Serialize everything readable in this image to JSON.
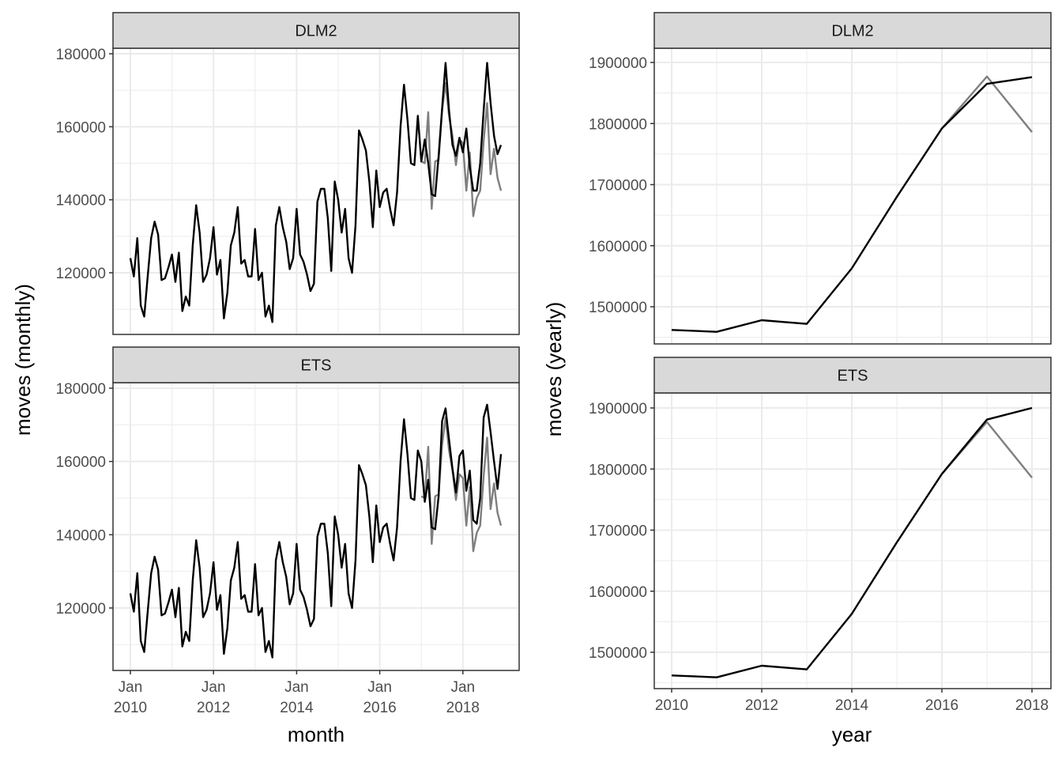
{
  "figure": {
    "left_ylabel": "moves (monthly)",
    "left_xlabel": "month",
    "right_ylabel": "moves (yearly)",
    "right_xlabel": "year",
    "colors": {
      "fitted": "#000000",
      "observed": "#7f7f7f",
      "strip_bg": "#d9d9d9",
      "grid": "#ebebeb",
      "panel_border": "#333333"
    }
  },
  "chart_data": [
    {
      "type": "line",
      "facet": "DLM2",
      "x": "monthly, Jan 2010 to Dec 2018",
      "xticks": [
        "Jan\n2010",
        "Jan\n2012",
        "Jan\n2014",
        "Jan\n2016",
        "Jan\n2018"
      ],
      "yticks": [
        "120000",
        "140000",
        "160000",
        "180000"
      ],
      "ylim": [
        103000,
        190000
      ],
      "series": [
        {
          "role": "fitted",
          "values": [
            124000,
            119000,
            129500,
            111000,
            108000,
            119000,
            129500,
            134000,
            130500,
            118000,
            118500,
            121500,
            125000,
            117500,
            125500,
            109500,
            113500,
            111000,
            127500,
            138500,
            131000,
            117500,
            119500,
            124000,
            132500,
            119500,
            123500,
            107500,
            114500,
            127500,
            131000,
            138000,
            122500,
            123500,
            119000,
            119000,
            132000,
            118000,
            120000,
            108000,
            111000,
            106500,
            133000,
            138000,
            132500,
            128500,
            121000,
            124000,
            137500,
            125000,
            123000,
            119500,
            115000,
            117000,
            139500,
            143000,
            143000,
            135000,
            120500,
            145000,
            140000,
            131000,
            137500,
            124000,
            120000,
            133000,
            159000,
            156500,
            153500,
            145000,
            132500,
            148000,
            138000,
            142000,
            143000,
            137500,
            133000,
            142000,
            160000,
            171500,
            162000,
            150000,
            149500,
            163000,
            150500,
            156500,
            150000,
            141500,
            141000,
            152000,
            165000,
            177500,
            164500,
            155000,
            152000,
            157000,
            153000,
            159500,
            149000,
            142500,
            142500,
            150000,
            164500,
            177500,
            166500,
            157500,
            152500,
            155000
          ],
          "ticks_ref": "fitted"
        },
        {
          "role": "observed",
          "values": [
            null,
            null,
            null,
            null,
            null,
            null,
            null,
            null,
            null,
            null,
            null,
            null,
            null,
            null,
            null,
            null,
            null,
            null,
            null,
            null,
            null,
            null,
            null,
            null,
            null,
            null,
            null,
            null,
            null,
            null,
            null,
            null,
            null,
            null,
            null,
            null,
            null,
            null,
            null,
            null,
            null,
            null,
            null,
            null,
            null,
            null,
            null,
            null,
            null,
            null,
            null,
            null,
            null,
            null,
            null,
            null,
            null,
            null,
            null,
            null,
            null,
            null,
            null,
            null,
            null,
            null,
            null,
            null,
            null,
            null,
            null,
            null,
            null,
            null,
            null,
            null,
            null,
            null,
            null,
            null,
            null,
            null,
            null,
            null,
            150500,
            150000,
            164000,
            137500,
            150500,
            151000,
            164500,
            172000,
            163000,
            157500,
            149500,
            156500,
            155500,
            142500,
            153000,
            135500,
            140500,
            142500,
            156000,
            166500,
            147000,
            154000,
            146000,
            142500
          ]
        }
      ]
    },
    {
      "type": "line",
      "facet": "ETS",
      "x": "monthly, Jan 2010 to Dec 2018",
      "xticks": [
        "Jan\n2010",
        "Jan\n2012",
        "Jan\n2014",
        "Jan\n2016",
        "Jan\n2018"
      ],
      "yticks": [
        "120000",
        "140000",
        "160000",
        "180000"
      ],
      "ylim": [
        103000,
        190000
      ],
      "series": [
        {
          "role": "fitted",
          "values": [
            124000,
            119000,
            129500,
            111000,
            108000,
            119000,
            129500,
            134000,
            130500,
            118000,
            118500,
            121500,
            125000,
            117500,
            125500,
            109500,
            113500,
            111000,
            127500,
            138500,
            131000,
            117500,
            119500,
            124000,
            132500,
            119500,
            123500,
            107500,
            114500,
            127500,
            131000,
            138000,
            122500,
            123500,
            119000,
            119000,
            132000,
            118000,
            120000,
            108000,
            111000,
            106500,
            133000,
            138000,
            132500,
            128500,
            121000,
            124000,
            137500,
            125000,
            123000,
            119500,
            115000,
            117000,
            139500,
            143000,
            143000,
            135000,
            120500,
            145000,
            140000,
            131000,
            137500,
            124000,
            120000,
            133000,
            159000,
            156500,
            153500,
            145000,
            132500,
            148000,
            138000,
            142000,
            143000,
            137500,
            133000,
            142000,
            160000,
            171500,
            162000,
            150000,
            149500,
            163000,
            160000,
            149000,
            155000,
            142000,
            141500,
            150500,
            171000,
            174500,
            166000,
            158000,
            151500,
            161500,
            163000,
            152000,
            157500,
            144000,
            143000,
            150000,
            172000,
            175500,
            168000,
            160000,
            152500,
            162000
          ]
        },
        {
          "role": "observed",
          "values": [
            null,
            null,
            null,
            null,
            null,
            null,
            null,
            null,
            null,
            null,
            null,
            null,
            null,
            null,
            null,
            null,
            null,
            null,
            null,
            null,
            null,
            null,
            null,
            null,
            null,
            null,
            null,
            null,
            null,
            null,
            null,
            null,
            null,
            null,
            null,
            null,
            null,
            null,
            null,
            null,
            null,
            null,
            null,
            null,
            null,
            null,
            null,
            null,
            null,
            null,
            null,
            null,
            null,
            null,
            null,
            null,
            null,
            null,
            null,
            null,
            null,
            null,
            null,
            null,
            null,
            null,
            null,
            null,
            null,
            null,
            null,
            null,
            null,
            null,
            null,
            null,
            null,
            null,
            null,
            null,
            null,
            null,
            null,
            null,
            150500,
            150000,
            164000,
            137500,
            150500,
            151000,
            164500,
            172000,
            163000,
            157500,
            149500,
            156500,
            155500,
            142500,
            153000,
            135500,
            140500,
            142500,
            156000,
            166500,
            147000,
            154000,
            146000,
            142500
          ]
        }
      ]
    },
    {
      "type": "line",
      "facet": "DLM2",
      "x": [
        2010,
        2011,
        2012,
        2013,
        2014,
        2015,
        2016,
        2017,
        2018
      ],
      "xticks": [
        "2010",
        "2012",
        "2014",
        "2016",
        "2018"
      ],
      "yticks": [
        "1500000",
        "1600000",
        "1700000",
        "1800000",
        "1900000"
      ],
      "ylim": [
        1440000,
        1925000
      ],
      "series": [
        {
          "role": "fitted",
          "values": [
            1462000,
            1459000,
            1478000,
            1472000,
            1563000,
            1680000,
            1792000,
            1865000,
            1876000
          ]
        },
        {
          "role": "observed",
          "values": [
            null,
            null,
            null,
            null,
            null,
            null,
            1792000,
            1877000,
            1786000
          ]
        }
      ]
    },
    {
      "type": "line",
      "facet": "ETS",
      "x": [
        2010,
        2011,
        2012,
        2013,
        2014,
        2015,
        2016,
        2017,
        2018
      ],
      "xticks": [
        "2010",
        "2012",
        "2014",
        "2016",
        "2018"
      ],
      "yticks": [
        "1500000",
        "1600000",
        "1700000",
        "1800000",
        "1900000"
      ],
      "ylim": [
        1440000,
        1925000
      ],
      "series": [
        {
          "role": "fitted",
          "values": [
            1462000,
            1459000,
            1478000,
            1472000,
            1563000,
            1680000,
            1792000,
            1881000,
            1900000
          ]
        },
        {
          "role": "observed",
          "values": [
            null,
            null,
            null,
            null,
            null,
            null,
            1792000,
            1877000,
            1786000
          ]
        }
      ]
    }
  ]
}
